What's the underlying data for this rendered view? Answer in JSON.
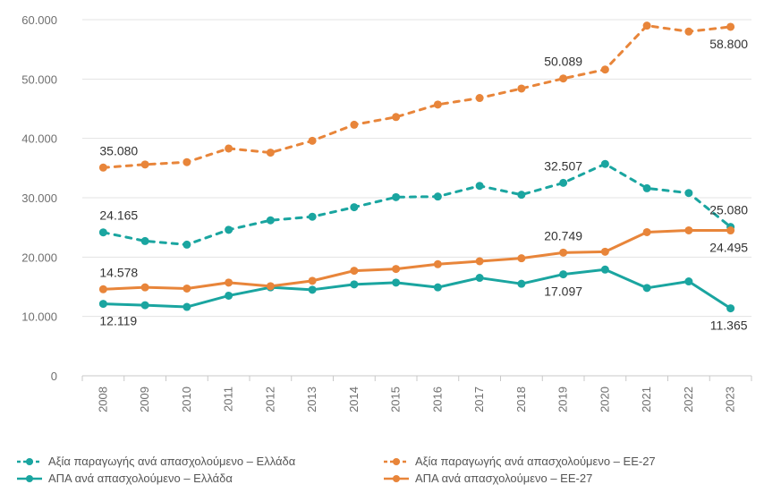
{
  "chart_data": {
    "type": "line",
    "title": "",
    "xlabel": "",
    "ylabel": "",
    "ylim": [
      0,
      60000
    ],
    "yticks": [
      "0",
      "10.000",
      "20.000",
      "30.000",
      "40.000",
      "50.000",
      "60.000"
    ],
    "categories": [
      "2008",
      "2009",
      "2010",
      "2011",
      "2012",
      "2013",
      "2014",
      "2015",
      "2016",
      "2017",
      "2018",
      "2019",
      "2020",
      "2021",
      "2022",
      "2023"
    ],
    "grid": true,
    "legend_position": "bottom",
    "series": [
      {
        "name": "Αξία παραγωγής ανά απασχολούμενο – Ελλάδα",
        "style": "dashed",
        "color": "#1aa5a0",
        "values": [
          24165,
          22700,
          22100,
          24600,
          26200,
          26800,
          28400,
          30100,
          30200,
          32000,
          30500,
          32507,
          35700,
          31600,
          30800,
          25080
        ],
        "labels": [
          {
            "i": 0,
            "text": "24.165",
            "pos": "above"
          },
          {
            "i": 11,
            "text": "32.507",
            "pos": "above"
          },
          {
            "i": 15,
            "text": "25.080",
            "pos": "above"
          }
        ]
      },
      {
        "name": "Αξία παραγωγής ανά απασχολούμενο – ΕΕ-27",
        "style": "dashed",
        "color": "#e8853a",
        "values": [
          35080,
          35600,
          36000,
          38300,
          37600,
          39600,
          42300,
          43600,
          45700,
          46800,
          48400,
          50089,
          51600,
          59000,
          58000,
          58800
        ],
        "labels": [
          {
            "i": 0,
            "text": "35.080",
            "pos": "above"
          },
          {
            "i": 11,
            "text": "50.089",
            "pos": "above"
          },
          {
            "i": 15,
            "text": "58.800",
            "pos": "below"
          }
        ]
      },
      {
        "name": "ΑΠΑ ανά απασχολούμενο – Ελλάδα",
        "style": "solid",
        "color": "#1aa5a0",
        "values": [
          12119,
          11900,
          11600,
          13500,
          14900,
          14500,
          15400,
          15700,
          14900,
          16500,
          15500,
          17097,
          17900,
          14800,
          15900,
          11365
        ],
        "labels": [
          {
            "i": 0,
            "text": "12.119",
            "pos": "below"
          },
          {
            "i": 11,
            "text": "17.097",
            "pos": "below"
          },
          {
            "i": 15,
            "text": "11.365",
            "pos": "below"
          }
        ]
      },
      {
        "name": "ΑΠΑ ανά απασχολούμενο – ΕΕ-27",
        "style": "solid",
        "color": "#e8853a",
        "values": [
          14578,
          14900,
          14700,
          15700,
          15100,
          16000,
          17700,
          18000,
          18800,
          19300,
          19800,
          20749,
          20900,
          24200,
          24500,
          24495
        ],
        "labels": [
          {
            "i": 0,
            "text": "14.578",
            "pos": "above"
          },
          {
            "i": 11,
            "text": "20.749",
            "pos": "above"
          },
          {
            "i": 15,
            "text": "24.495",
            "pos": "below"
          }
        ]
      }
    ]
  }
}
